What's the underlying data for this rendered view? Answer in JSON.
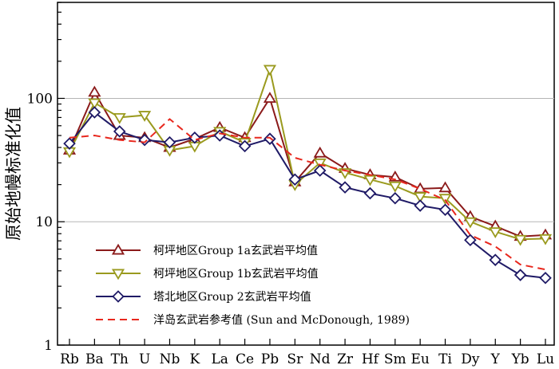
{
  "chart_data": {
    "type": "line",
    "y_scale": "log",
    "ylim": [
      1,
      600
    ],
    "ylabel": "原始地幔标准化值",
    "xlabel": "",
    "y_ticks": [
      1,
      10,
      100
    ],
    "y_tick_labels": [
      "1",
      "10",
      "100"
    ],
    "gridlines_y": [
      10,
      100
    ],
    "legend_position": "bottom-left",
    "categories": [
      "Rb",
      "Ba",
      "Th",
      "U",
      "Nb",
      "K",
      "La",
      "Ce",
      "Pb",
      "Sr",
      "Nd",
      "Zr",
      "Hf",
      "Sm",
      "Eu",
      "Ti",
      "Dy",
      "Y",
      "Yb",
      "Lu"
    ],
    "series": [
      {
        "name": "柯坪地区Group 1a玄武岩平均值",
        "marker": "triangle-up",
        "line_style": "solid",
        "color": "#8b1a1a",
        "values": [
          38,
          112,
          50,
          48,
          40,
          47,
          58,
          48,
          100,
          21,
          36,
          27,
          24,
          23,
          18.5,
          18.8,
          11,
          9.2,
          7.6,
          7.8
        ]
      },
      {
        "name": "柯坪地区Group 1b玄武岩平均值",
        "marker": "triangle-down",
        "line_style": "solid",
        "color": "#9a9a1e",
        "values": [
          37,
          92,
          70,
          73,
          38,
          41,
          54,
          44,
          172,
          20,
          30,
          25,
          22,
          19.5,
          16,
          15.5,
          10,
          8.3,
          7.2,
          7.3
        ]
      },
      {
        "name": "塔北地区Group 2玄武岩平均值",
        "marker": "diamond",
        "line_style": "solid",
        "color": "#1f1a66",
        "values": [
          43,
          77,
          54,
          46,
          44,
          48,
          50,
          41,
          47,
          22,
          26,
          19,
          17,
          15.5,
          13.5,
          12.5,
          7.1,
          4.9,
          3.7,
          3.5
        ]
      },
      {
        "name": "洋岛玄武岩参考值 (Sun and McDonough, 1989)",
        "marker": "none",
        "line_style": "dashed",
        "color": "#e8281e",
        "values": [
          48,
          50,
          46,
          44,
          68,
          46,
          52,
          48,
          48,
          33,
          29,
          26,
          24,
          22,
          18.5,
          15,
          7.8,
          6.3,
          4.5,
          4.1
        ]
      }
    ]
  }
}
